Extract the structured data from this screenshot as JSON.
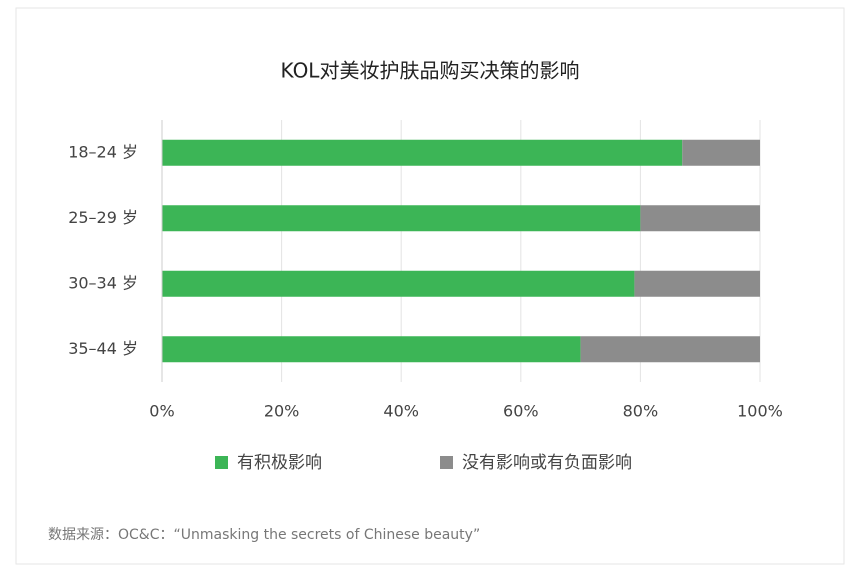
{
  "chart_data": {
    "type": "stacked-bar-horizontal",
    "title": "KOL对美妆护肤品购买决策的影响",
    "categories": [
      "18–24 岁",
      "25–29 岁",
      "30–34 岁",
      "35–44 岁"
    ],
    "series": [
      {
        "name": "有积极影响",
        "color": "#3cb556",
        "values": [
          87,
          80,
          79,
          70
        ]
      },
      {
        "name": "没有影响或有负面影响",
        "color": "#8c8c8c",
        "values": [
          13,
          20,
          21,
          30
        ]
      }
    ],
    "xlim": [
      0,
      100
    ],
    "xticks": [
      {
        "value": 0,
        "label": "0%"
      },
      {
        "value": 20,
        "label": "20%"
      },
      {
        "value": 40,
        "label": "40%"
      },
      {
        "value": 60,
        "label": "60%"
      },
      {
        "value": 80,
        "label": "80%"
      },
      {
        "value": 100,
        "label": "100%"
      }
    ],
    "grid": true,
    "legend": "bottom",
    "source": "数据来源：OC&C：“Unmasking the secrets of Chinese beauty”"
  }
}
